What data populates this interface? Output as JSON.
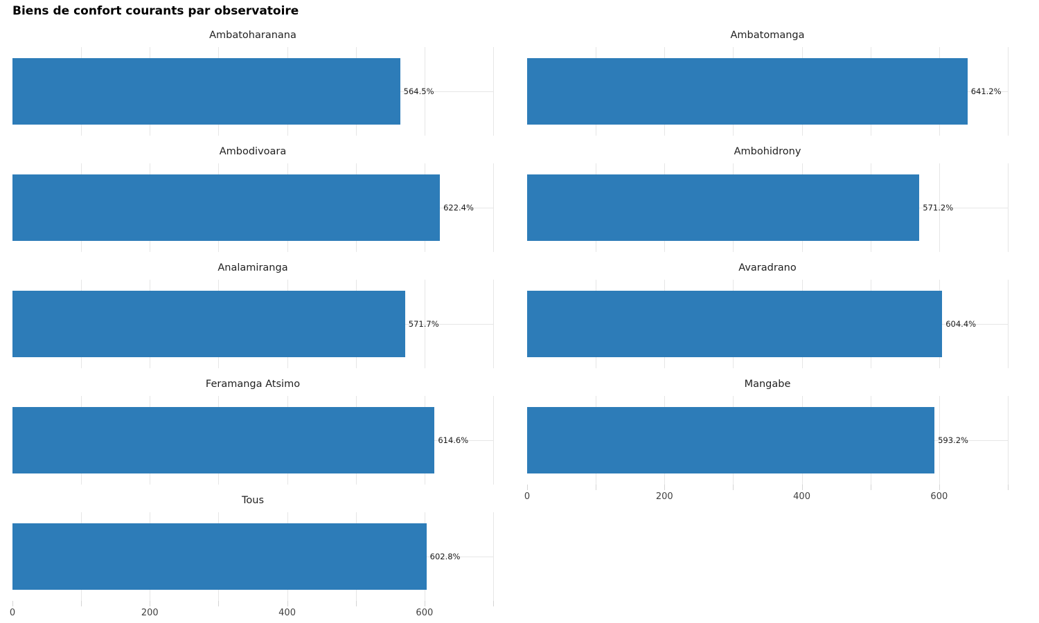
{
  "chart_data": {
    "type": "bar",
    "orientation": "horizontal",
    "title": "Biens de confort courants par observatoire",
    "unit": "%",
    "bar_color": "#2d7cb8",
    "grid_color": "#e6e6e6",
    "panel_background": "#ffffff",
    "legend": "none",
    "facets": [
      {
        "name": "Ambatoharanana",
        "value": 564.5,
        "label": "564.5%"
      },
      {
        "name": "Ambatomanga",
        "value": 641.2,
        "label": "641.2%"
      },
      {
        "name": "Ambodivoara",
        "value": 622.4,
        "label": "622.4%"
      },
      {
        "name": "Ambohidrony",
        "value": 571.2,
        "label": "571.2%"
      },
      {
        "name": "Analamiranga",
        "value": 571.7,
        "label": "571.7%"
      },
      {
        "name": "Avaradrano",
        "value": 604.4,
        "label": "604.4%"
      },
      {
        "name": "Feramanga Atsimo",
        "value": 614.6,
        "label": "614.6%"
      },
      {
        "name": "Mangabe",
        "value": 593.2,
        "label": "593.2%"
      },
      {
        "name": "Tous",
        "value": 602.8,
        "label": "602.8%"
      }
    ],
    "x_axis": {
      "range": [
        0,
        700
      ],
      "tick_labels": [
        0,
        200,
        400,
        600
      ],
      "tick_marks": [
        0,
        100,
        200,
        300,
        400,
        500,
        600,
        700
      ],
      "gridlines": [
        100,
        200,
        300,
        400,
        500,
        600,
        700
      ]
    }
  }
}
